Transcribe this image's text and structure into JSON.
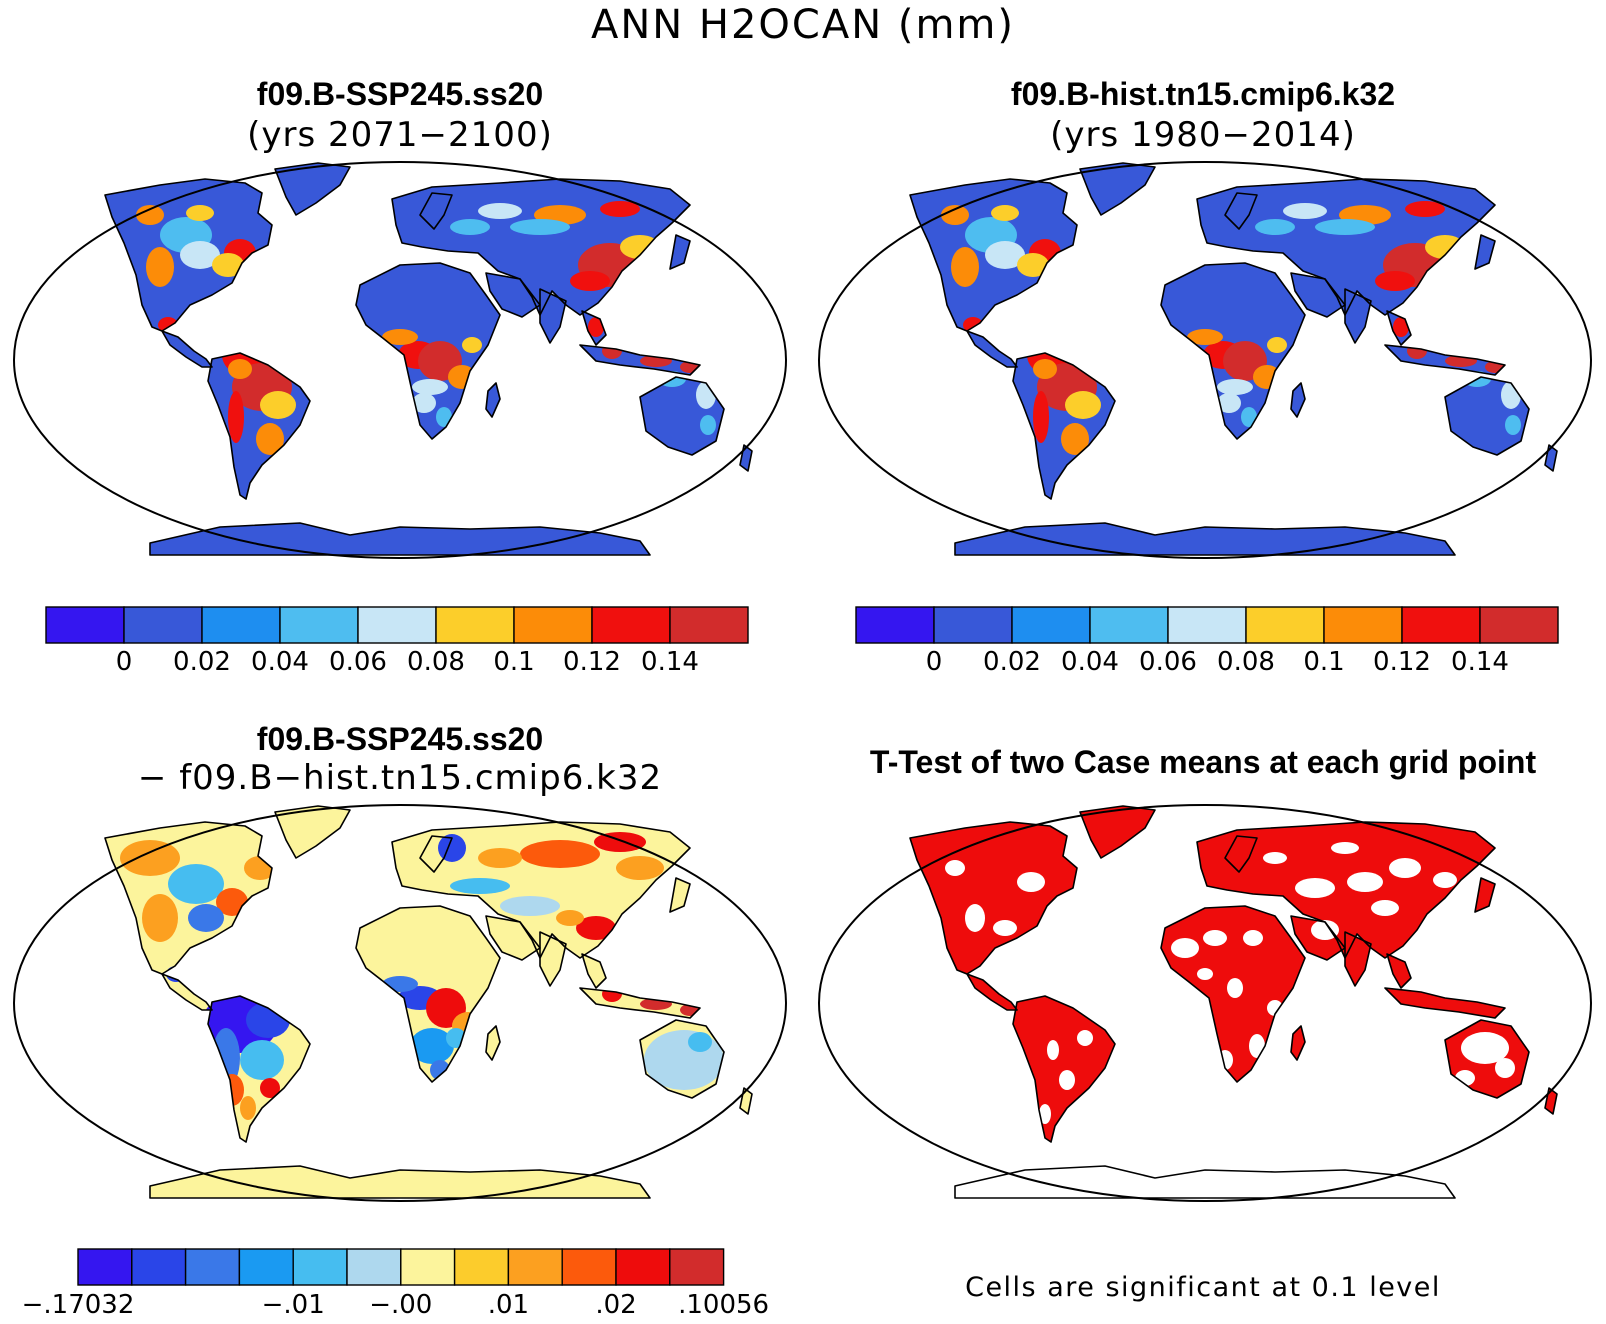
{
  "title": "ANN H2OCAN (mm)",
  "panels": [
    {
      "id": "p1",
      "title": "f09.B-SSP245.ss20",
      "subtitle": "(yrs 2071−2100)",
      "map_type": "climatology",
      "legend": "abs"
    },
    {
      "id": "p2",
      "title": "f09.B-hist.tn15.cmip6.k32",
      "subtitle": "(yrs 1980−2014)",
      "map_type": "climatology",
      "legend": "abs"
    },
    {
      "id": "p3",
      "title": "f09.B-SSP245.ss20",
      "subtitle": "− f09.B−hist.tn15.cmip6.k32",
      "map_type": "difference",
      "legend": "diff"
    },
    {
      "id": "p4",
      "title": "T-Test of two Case means at each grid point",
      "subtitle": "",
      "map_type": "significance",
      "note": "Cells are significant at 0.1 level"
    }
  ],
  "legends": {
    "abs": {
      "colors": [
        "#3516f0",
        "#3858d8",
        "#1e8ef0",
        "#4ebdf0",
        "#c8e6f6",
        "#fcce2a",
        "#fc8c08",
        "#f0100e",
        "#d22c2c"
      ],
      "labels": [
        "0",
        "0.02",
        "0.04",
        "0.06",
        "0.08",
        "0.1",
        "0.12",
        "0.14"
      ]
    },
    "diff": {
      "colors": [
        "#3516f0",
        "#2a45e8",
        "#3a78e8",
        "#1a9af2",
        "#46bdf0",
        "#aed8ee",
        "#fcf49c",
        "#fccc2c",
        "#fca020",
        "#fc5a0c",
        "#ee0c0c",
        "#d22c2c"
      ],
      "labels": [
        "−.17032",
        "−.01",
        "−.00",
        ".01",
        ".02",
        ".10056"
      ]
    }
  },
  "colors": {
    "ocean": "#ffffff",
    "land_abs_base": "#3858d8",
    "land_diff_base": "#fcf49c",
    "significant": "#ee0c0c",
    "coast": "#000000"
  }
}
